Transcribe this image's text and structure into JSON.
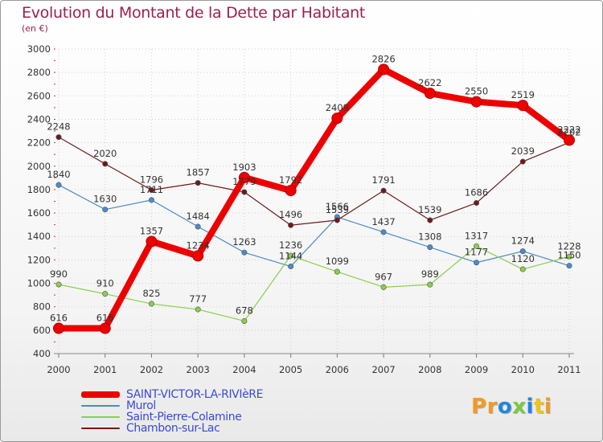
{
  "header": {
    "title": "Evolution du Montant de la Dette par Habitant",
    "subtitle": "(en €)"
  },
  "brand": {
    "name": "Proxiti",
    "colors": [
      "#f39a1e",
      "#f39a1e",
      "#1e88d8",
      "#7ac943",
      "#1e88d8",
      "#f0c419",
      "#f39a1e"
    ]
  },
  "chart_data": {
    "type": "line",
    "x": [
      "2000",
      "2001",
      "2002",
      "2003",
      "2004",
      "2005",
      "2006",
      "2007",
      "2008",
      "2009",
      "2010",
      "2011"
    ],
    "ylim": [
      400,
      3000
    ],
    "yticks": [
      400,
      600,
      800,
      1000,
      1200,
      1400,
      1600,
      1800,
      2000,
      2200,
      2400,
      2600,
      2800,
      3000
    ],
    "grid": true,
    "legend": "bottom",
    "series": [
      {
        "name": "SAINT-VICTOR-LA-RIVIèRE",
        "color": "#ee0000",
        "width": 8,
        "values": [
          616,
          616,
          1357,
          1234,
          1903,
          1792,
          2409,
          2826,
          2622,
          2550,
          2519,
          2222
        ],
        "labels": [
          "616",
          "616",
          "1357",
          "1234",
          "1903",
          "1792",
          "2409",
          "2826",
          "2622",
          "2550",
          "2519",
          "2222"
        ]
      },
      {
        "name": "Murol",
        "color": "#4a8cc8",
        "width": 1.2,
        "values": [
          1840,
          1630,
          1711,
          1484,
          1263,
          1144,
          1566,
          1437,
          1308,
          1177,
          1274,
          1150
        ],
        "labels": [
          "1840",
          "1630",
          "1711",
          "1484",
          "1263",
          "1144",
          "1566",
          "1437",
          "1308",
          "1177",
          "1274",
          "1150"
        ]
      },
      {
        "name": "Saint-Pierre-Colamine",
        "color": "#88d04a",
        "width": 1.2,
        "values": [
          990,
          910,
          825,
          777,
          678,
          1236,
          1099,
          967,
          989,
          1317,
          1120,
          1228
        ],
        "labels": [
          "990",
          "910",
          "825",
          "777",
          "678",
          "1236",
          "1099",
          "967",
          "989",
          "1317",
          "1120",
          "1228"
        ]
      },
      {
        "name": "Chambon-sur-Lac",
        "color": "#6e1a1a",
        "width": 1.2,
        "values": [
          2248,
          2020,
          1796,
          1857,
          1779,
          1496,
          1539,
          1791,
          1539,
          1686,
          2039,
          2202
        ],
        "labels": [
          "2248",
          "2020",
          "1796",
          "1857",
          "1779",
          "1496",
          "1539",
          "1791",
          "1539",
          "1686",
          "2039",
          "2202"
        ]
      }
    ]
  }
}
